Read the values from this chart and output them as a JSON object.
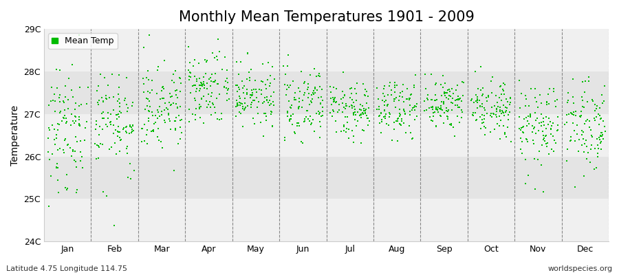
{
  "title": "Monthly Mean Temperatures 1901 - 2009",
  "ylabel": "Temperature",
  "xlabel": "",
  "subtitle_left": "Latitude 4.75 Longitude 114.75",
  "subtitle_right": "worldspecies.org",
  "legend_label": "Mean Temp",
  "years": 109,
  "start_year": 1901,
  "end_year": 2009,
  "ylim": [
    24.0,
    29.0
  ],
  "ytick_labels": [
    "24C",
    "25C",
    "26C",
    "27C",
    "28C",
    "29C"
  ],
  "ytick_values": [
    24.0,
    25.0,
    26.0,
    27.0,
    28.0,
    29.0
  ],
  "month_names": [
    "Jan",
    "Feb",
    "Mar",
    "Apr",
    "May",
    "Jun",
    "Jul",
    "Aug",
    "Sep",
    "Oct",
    "Nov",
    "Dec"
  ],
  "monthly_mean": [
    26.75,
    26.8,
    27.1,
    27.55,
    27.45,
    27.2,
    27.1,
    27.15,
    27.2,
    27.15,
    26.8,
    26.85
  ],
  "monthly_std": [
    0.65,
    0.55,
    0.5,
    0.45,
    0.4,
    0.35,
    0.3,
    0.32,
    0.35,
    0.38,
    0.45,
    0.48
  ],
  "monthly_skew": [
    -1.2,
    -1.0,
    -0.3,
    0.3,
    0.2,
    0.1,
    0.1,
    0.1,
    0.0,
    0.1,
    -0.5,
    -0.3
  ],
  "scatter_color": "#00BB00",
  "scatter_marker": "s",
  "scatter_size": 3,
  "background_color": "#ffffff",
  "plot_background_light": "#f5f5f5",
  "plot_background_dark": "#e8e8e8",
  "band_colors": [
    "#f0f0f0",
    "#e4e4e4"
  ],
  "title_fontsize": 15,
  "axis_label_fontsize": 10,
  "tick_fontsize": 9,
  "annotation_fontsize": 8,
  "legend_fontsize": 9
}
